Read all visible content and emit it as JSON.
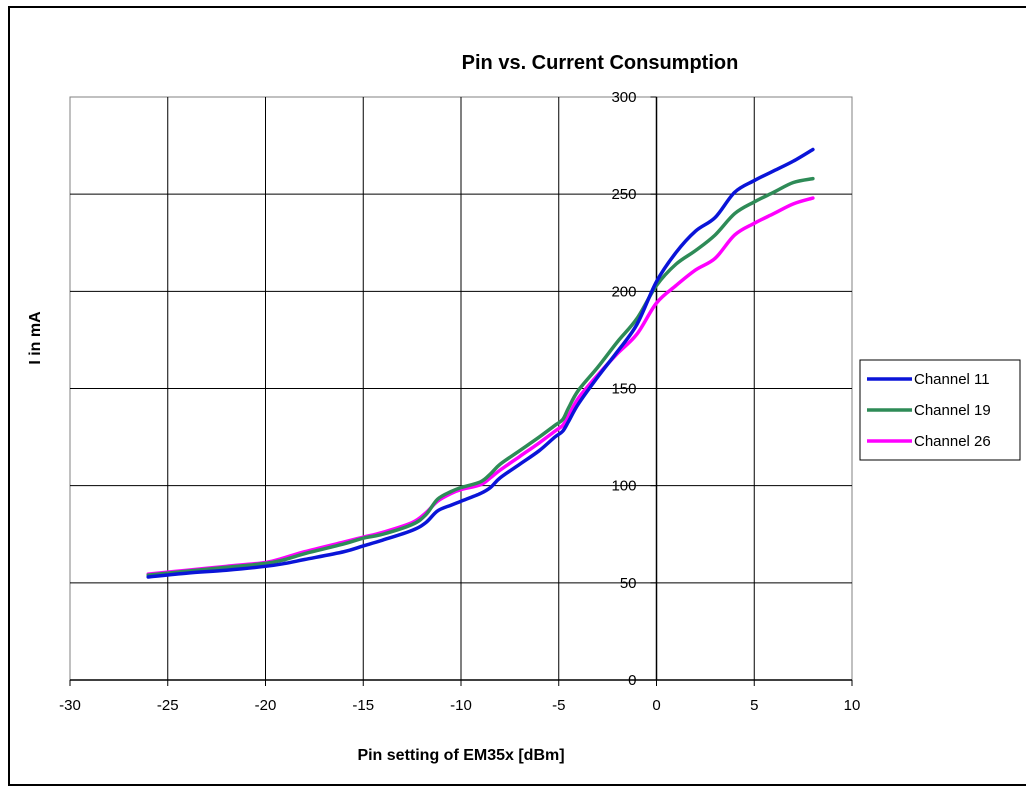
{
  "chart_data": {
    "type": "line",
    "title": "Pin vs. Current Consumption",
    "xlabel": "Pin setting of EM35x [dBm]",
    "ylabel": "I in mA",
    "xlim": [
      -30,
      10
    ],
    "ylim": [
      0,
      300
    ],
    "x_ticks": [
      "-30",
      "-25",
      "-20",
      "-15",
      "-10",
      "-5",
      "0",
      "5",
      "10"
    ],
    "y_ticks": [
      "0",
      "50",
      "100",
      "150",
      "200",
      "250",
      "300"
    ],
    "grid": true,
    "legend_position": "right",
    "series": [
      {
        "name": "Channel 11",
        "color": "#0a14d8",
        "points": [
          [
            -26,
            53
          ],
          [
            -24,
            55
          ],
          [
            -22,
            56.5
          ],
          [
            -20,
            58.5
          ],
          [
            -19,
            60
          ],
          [
            -18,
            62
          ],
          [
            -16,
            66
          ],
          [
            -15,
            69
          ],
          [
            -14,
            72
          ],
          [
            -12.5,
            77
          ],
          [
            -11.8,
            81
          ],
          [
            -11.2,
            87
          ],
          [
            -10.5,
            90
          ],
          [
            -10,
            92
          ],
          [
            -9,
            96
          ],
          [
            -8.5,
            99
          ],
          [
            -8,
            104
          ],
          [
            -7,
            111
          ],
          [
            -6,
            118
          ],
          [
            -5.2,
            125
          ],
          [
            -4.8,
            128
          ],
          [
            -4.5,
            133
          ],
          [
            -4,
            142
          ],
          [
            -3,
            156
          ],
          [
            -2,
            169
          ],
          [
            -1,
            183
          ],
          [
            0,
            205
          ],
          [
            1,
            220
          ],
          [
            2,
            231
          ],
          [
            3,
            238
          ],
          [
            4,
            251
          ],
          [
            5,
            257
          ],
          [
            6,
            262
          ],
          [
            7,
            267
          ],
          [
            8,
            273
          ]
        ]
      },
      {
        "name": "Channel 19",
        "color": "#2e8b57",
        "points": [
          [
            -26,
            54
          ],
          [
            -24,
            56
          ],
          [
            -22,
            58
          ],
          [
            -20,
            60
          ],
          [
            -19,
            62
          ],
          [
            -18,
            65
          ],
          [
            -16,
            70
          ],
          [
            -15,
            73
          ],
          [
            -14,
            75
          ],
          [
            -12.5,
            80
          ],
          [
            -11.8,
            85
          ],
          [
            -11.2,
            93
          ],
          [
            -10.5,
            97
          ],
          [
            -10,
            99
          ],
          [
            -9,
            102
          ],
          [
            -8.5,
            106
          ],
          [
            -8,
            111
          ],
          [
            -7,
            118
          ],
          [
            -6,
            125
          ],
          [
            -5.2,
            131
          ],
          [
            -4.8,
            134
          ],
          [
            -4.5,
            140
          ],
          [
            -4,
            149
          ],
          [
            -3,
            161
          ],
          [
            -2,
            174
          ],
          [
            -1,
            186
          ],
          [
            0,
            203
          ],
          [
            1,
            214
          ],
          [
            2,
            221
          ],
          [
            3,
            229
          ],
          [
            4,
            240
          ],
          [
            5,
            246
          ],
          [
            6,
            251
          ],
          [
            7,
            256
          ],
          [
            8,
            258
          ]
        ]
      },
      {
        "name": "Channel 26",
        "color": "#ff00ff",
        "points": [
          [
            -26,
            54.5
          ],
          [
            -24,
            56.5
          ],
          [
            -22,
            58.5
          ],
          [
            -20,
            60.5
          ],
          [
            -19,
            63
          ],
          [
            -18,
            66
          ],
          [
            -16,
            71
          ],
          [
            -15,
            73.5
          ],
          [
            -14,
            76
          ],
          [
            -12.5,
            81
          ],
          [
            -11.8,
            86
          ],
          [
            -11.2,
            92
          ],
          [
            -10.5,
            96
          ],
          [
            -10,
            98
          ],
          [
            -9,
            100.5
          ],
          [
            -8.5,
            104
          ],
          [
            -8,
            108
          ],
          [
            -7,
            115
          ],
          [
            -6,
            122
          ],
          [
            -5.2,
            128
          ],
          [
            -4.8,
            131
          ],
          [
            -4.5,
            136
          ],
          [
            -4,
            145
          ],
          [
            -3,
            157
          ],
          [
            -2,
            168
          ],
          [
            -1,
            178
          ],
          [
            0,
            194
          ],
          [
            1,
            203
          ],
          [
            2,
            211
          ],
          [
            3,
            217
          ],
          [
            4,
            229
          ],
          [
            5,
            235
          ],
          [
            6,
            240
          ],
          [
            7,
            245
          ],
          [
            8,
            248
          ]
        ]
      }
    ]
  }
}
